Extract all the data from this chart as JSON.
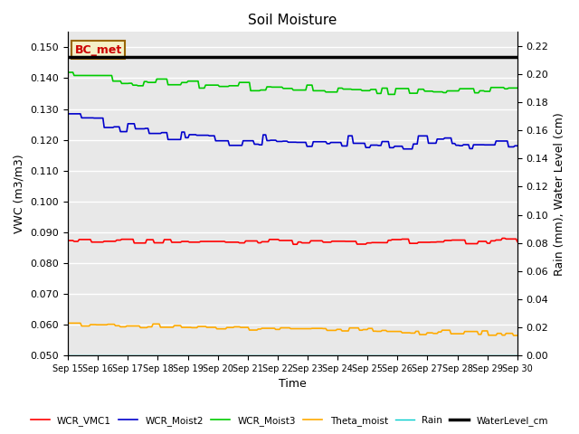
{
  "title": "Soil Moisture",
  "xlabel": "Time",
  "ylabel_left": "VWC (m3/m3)",
  "ylabel_right": "Rain (mm), Water Level (cm)",
  "xlim": [
    0,
    15
  ],
  "ylim_left": [
    0.05,
    0.155
  ],
  "ylim_right": [
    0.0,
    0.23
  ],
  "background_color": "#e8e8e8",
  "annotation_text": "BC_met",
  "annotation_box_color": "#f5f0c8",
  "annotation_box_edge": "#996600",
  "xtick_labels": [
    "Sep 15",
    "Sep 16",
    "Sep 17",
    "Sep 18",
    "Sep 19",
    "Sep 20",
    "Sep 21",
    "Sep 22",
    "Sep 23",
    "Sep 24",
    "Sep 25",
    "Sep 26",
    "Sep 27",
    "Sep 28",
    "Sep 29",
    "Sep 30"
  ],
  "ytick_left": [
    0.05,
    0.06,
    0.07,
    0.08,
    0.09,
    0.1,
    0.11,
    0.12,
    0.13,
    0.14,
    0.15
  ],
  "ytick_right": [
    0.0,
    0.02,
    0.04,
    0.06,
    0.08,
    0.1,
    0.12,
    0.14,
    0.16,
    0.18,
    0.2,
    0.22
  ],
  "series": {
    "WCR_VMC1": {
      "color": "#ff0000",
      "lw": 1.2
    },
    "WCR_Moist2": {
      "color": "#0000cc",
      "lw": 1.2
    },
    "WCR_Moist3": {
      "color": "#00cc00",
      "lw": 1.2
    },
    "Theta_moist": {
      "color": "#ffaa00",
      "lw": 1.2
    },
    "Rain": {
      "color": "#00cccc",
      "lw": 1.0
    },
    "WaterLevel_cm": {
      "color": "#000000",
      "lw": 2.5
    }
  }
}
